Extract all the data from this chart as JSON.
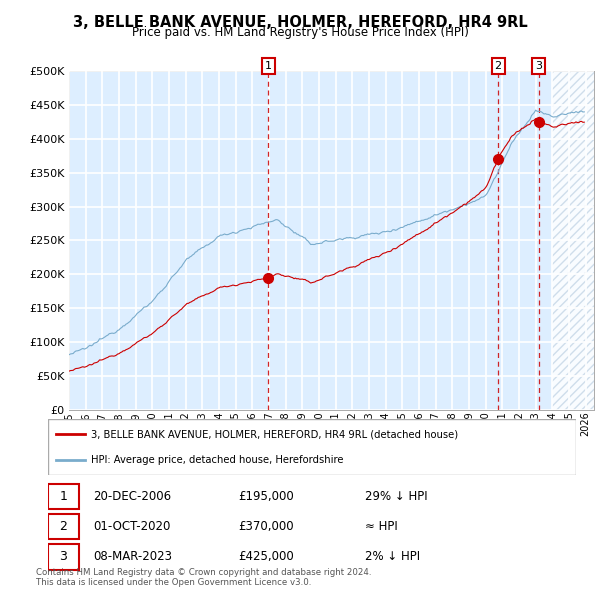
{
  "title": "3, BELLE BANK AVENUE, HOLMER, HEREFORD, HR4 9RL",
  "subtitle": "Price paid vs. HM Land Registry's House Price Index (HPI)",
  "legend_label_red": "3, BELLE BANK AVENUE, HOLMER, HEREFORD, HR4 9RL (detached house)",
  "legend_label_blue": "HPI: Average price, detached house, Herefordshire",
  "transactions": [
    {
      "num": 1,
      "date": "20-DEC-2006",
      "x_year": 2006.97,
      "price": 195000,
      "note": "29% ↓ HPI"
    },
    {
      "num": 2,
      "date": "01-OCT-2020",
      "x_year": 2020.75,
      "price": 370000,
      "note": "≈ HPI"
    },
    {
      "num": 3,
      "date": "08-MAR-2023",
      "x_year": 2023.18,
      "price": 425000,
      "note": "2% ↓ HPI"
    }
  ],
  "copyright": "Contains HM Land Registry data © Crown copyright and database right 2024.\nThis data is licensed under the Open Government Licence v3.0.",
  "ylim": [
    0,
    500000
  ],
  "xlim_start": 1995.0,
  "xlim_end": 2026.5,
  "chart_bg_color": "#ddeeff",
  "hatch_color": "#c8d8e8",
  "grid_color": "#ffffff",
  "red_color": "#cc0000",
  "blue_color": "#7aaccc"
}
